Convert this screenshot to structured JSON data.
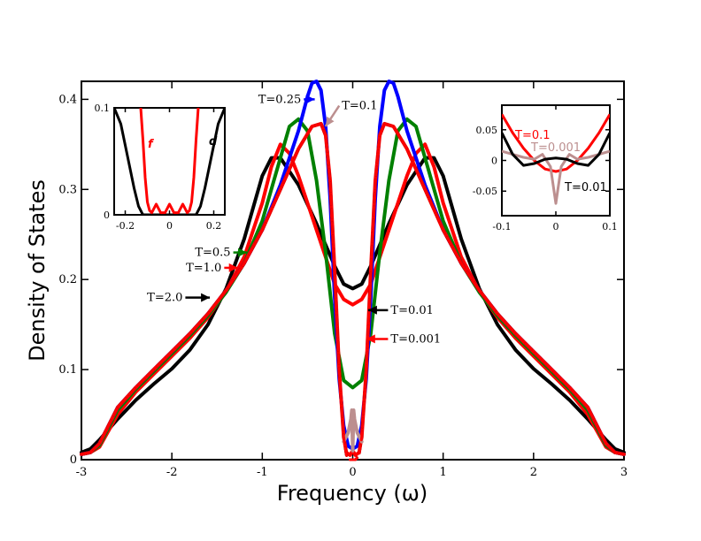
{
  "chart_data": [
    {
      "type": "line",
      "name": "main",
      "xlabel": "Frequency (ω)",
      "ylabel": "Density of States",
      "xlim": [
        -3,
        3
      ],
      "ylim": [
        0,
        0.42
      ],
      "xticks": [
        -3,
        -2,
        -1,
        0,
        1,
        2,
        3
      ],
      "xtick_labels": [
        "-3",
        "-2",
        "-1",
        "0",
        "1",
        "2",
        "3"
      ],
      "yticks": [
        0,
        0.1,
        0.2,
        0.3,
        0.4
      ],
      "ytick_labels": [
        "0",
        "0.1",
        "0.2",
        "0.3",
        "0.4"
      ],
      "series": [
        {
          "name": "T=2.0",
          "color": "#000000",
          "dashed": false,
          "x": [
            -3,
            -2.9,
            -2.8,
            -2.6,
            -2.4,
            -2.2,
            -2.0,
            -1.8,
            -1.6,
            -1.4,
            -1.2,
            -1.0,
            -0.9,
            -0.8,
            -0.6,
            -0.4,
            -0.2,
            -0.1,
            0
          ],
          "y": [
            0.008,
            0.012,
            0.022,
            0.045,
            0.066,
            0.084,
            0.101,
            0.122,
            0.15,
            0.19,
            0.245,
            0.315,
            0.335,
            0.335,
            0.305,
            0.262,
            0.215,
            0.195,
            0.19
          ]
        },
        {
          "name": "T=1.0",
          "color": "#ff0000",
          "dashed": false,
          "x": [
            -3,
            -2.9,
            -2.8,
            -2.6,
            -2.4,
            -2.2,
            -2.0,
            -1.8,
            -1.6,
            -1.4,
            -1.2,
            -1.0,
            -0.9,
            -0.8,
            -0.7,
            -0.6,
            -0.4,
            -0.2,
            -0.1,
            0
          ],
          "y": [
            0.006,
            0.008,
            0.014,
            0.05,
            0.075,
            0.095,
            0.115,
            0.135,
            0.158,
            0.187,
            0.225,
            0.285,
            0.325,
            0.35,
            0.34,
            0.315,
            0.255,
            0.195,
            0.178,
            0.172
          ]
        },
        {
          "name": "T=0.5",
          "color": "#008000",
          "dashed": false,
          "x": [
            -3,
            -2.9,
            -2.8,
            -2.6,
            -2.4,
            -2.2,
            -2.0,
            -1.8,
            -1.6,
            -1.4,
            -1.2,
            -1.0,
            -0.8,
            -0.7,
            -0.6,
            -0.5,
            -0.4,
            -0.3,
            -0.2,
            -0.1,
            0
          ],
          "y": [
            0.006,
            0.008,
            0.016,
            0.055,
            0.078,
            0.098,
            0.118,
            0.138,
            0.16,
            0.186,
            0.218,
            0.265,
            0.335,
            0.37,
            0.378,
            0.365,
            0.31,
            0.23,
            0.14,
            0.088,
            0.08
          ]
        },
        {
          "name": "T=0.25",
          "color": "#0000ff",
          "dashed": false,
          "x": [
            -3,
            -2.9,
            -2.8,
            -2.6,
            -2.4,
            -2.2,
            -2.0,
            -1.8,
            -1.6,
            -1.4,
            -1.2,
            -1.0,
            -0.8,
            -0.6,
            -0.5,
            -0.45,
            -0.4,
            -0.35,
            -0.3,
            -0.25,
            -0.2,
            -0.15,
            -0.1,
            -0.05,
            0
          ],
          "y": [
            0.006,
            0.008,
            0.018,
            0.058,
            0.08,
            0.1,
            0.12,
            0.14,
            0.162,
            0.188,
            0.218,
            0.255,
            0.305,
            0.365,
            0.403,
            0.418,
            0.42,
            0.41,
            0.37,
            0.29,
            0.18,
            0.09,
            0.038,
            0.015,
            0.012
          ]
        },
        {
          "name": "T=0.1",
          "color": "#ff0000",
          "dashed": false,
          "x": [
            -3,
            -2.9,
            -2.8,
            -2.6,
            -2.4,
            -2.2,
            -2.0,
            -1.8,
            -1.6,
            -1.4,
            -1.2,
            -1.0,
            -0.8,
            -0.6,
            -0.45,
            -0.35,
            -0.3,
            -0.25,
            -0.2,
            -0.15,
            -0.1,
            -0.07,
            -0.03,
            0
          ],
          "y": [
            0.006,
            0.008,
            0.018,
            0.058,
            0.08,
            0.1,
            0.12,
            0.14,
            0.162,
            0.188,
            0.218,
            0.255,
            0.3,
            0.345,
            0.37,
            0.373,
            0.36,
            0.31,
            0.21,
            0.1,
            0.025,
            0.008,
            0.005,
            0.01
          ]
        },
        {
          "name": "T=0.01",
          "color": "#000000",
          "dashed": true,
          "x": [
            -3,
            -2.9,
            -2.8,
            -2.6,
            -2.4,
            -2.2,
            -2.0,
            -1.8,
            -1.6,
            -1.4,
            -1.2,
            -1.0,
            -0.8,
            -0.6,
            -0.45,
            -0.35,
            -0.3,
            -0.25,
            -0.2,
            -0.15,
            -0.1,
            -0.07,
            -0.03,
            0
          ],
          "y": [
            0.006,
            0.008,
            0.018,
            0.058,
            0.08,
            0.1,
            0.12,
            0.14,
            0.162,
            0.188,
            0.218,
            0.255,
            0.3,
            0.345,
            0.37,
            0.373,
            0.36,
            0.31,
            0.21,
            0.1,
            0.025,
            0.005,
            0.0,
            0.0
          ]
        },
        {
          "name": "T=0.001",
          "color": "#bc8f8f",
          "dashed": false,
          "x": [
            -0.1,
            -0.05,
            -0.02,
            -0.01,
            0
          ],
          "y": [
            0.02,
            0.03,
            0.045,
            0.055,
            0.01
          ]
        },
        {
          "name": "T=0.001 dashed",
          "color": "#ff0000",
          "dashed": true,
          "x": [
            -3,
            -2.9,
            -2.8,
            -2.6,
            -2.4,
            -2.2,
            -2.0,
            -1.8,
            -1.6,
            -1.4,
            -1.2,
            -1.0,
            -0.8,
            -0.6,
            -0.45,
            -0.35,
            -0.3,
            -0.25,
            -0.2,
            -0.15,
            -0.1,
            -0.07,
            -0.03,
            0
          ],
          "y": [
            0.006,
            0.008,
            0.018,
            0.058,
            0.08,
            0.1,
            0.12,
            0.14,
            0.162,
            0.188,
            0.218,
            0.255,
            0.3,
            0.345,
            0.37,
            0.373,
            0.36,
            0.31,
            0.21,
            0.1,
            0.025,
            0.005,
            0.0,
            0.0
          ]
        }
      ],
      "symmetric": true,
      "annotations": [
        {
          "text": "T=0.25",
          "at": [
            -0.57,
            0.4
          ],
          "arrow_to": [
            -0.42,
            0.4
          ],
          "color": "#0000ff"
        },
        {
          "text": "T=0.1",
          "at": [
            -0.12,
            0.393
          ],
          "arrow_to": [
            -0.3,
            0.37
          ],
          "color": "#bc8f8f"
        },
        {
          "text": "T=0.5",
          "at": [
            -1.35,
            0.23
          ],
          "arrow_to": [
            -1.17,
            0.23
          ],
          "color": "#008000"
        },
        {
          "text": "T=1.0",
          "at": [
            -1.45,
            0.213
          ],
          "arrow_to": [
            -1.27,
            0.213
          ],
          "color": "#ff0000"
        },
        {
          "text": "T=2.0",
          "at": [
            -1.88,
            0.18
          ],
          "arrow_to": [
            -1.58,
            0.18
          ],
          "color": "#000000"
        },
        {
          "text": "T=0.01",
          "at": [
            0.42,
            0.166
          ],
          "arrow_to": [
            0.17,
            0.166
          ],
          "color": "#000000"
        },
        {
          "text": "T=0.001",
          "at": [
            0.42,
            0.134
          ],
          "arrow_to": [
            0.15,
            0.134
          ],
          "color": "#ff0000"
        }
      ]
    },
    {
      "type": "line",
      "name": "inset_left",
      "xlim": [
        -0.25,
        0.25
      ],
      "ylim": [
        0,
        0.1
      ],
      "xticks": [
        -0.2,
        0,
        0.2
      ],
      "xtick_labels": [
        "-0.2",
        "0",
        "0.2"
      ],
      "yticks": [
        0,
        0.1
      ],
      "ytick_labels": [
        "0",
        "0.1"
      ],
      "series": [
        {
          "name": "d",
          "color": "#000000",
          "x": [
            -0.25,
            -0.22,
            -0.19,
            -0.16,
            -0.14,
            -0.12,
            0,
            0.12,
            0.14,
            0.16,
            0.19,
            0.22,
            0.25
          ],
          "y": [
            0.1,
            0.085,
            0.055,
            0.025,
            0.008,
            0.0,
            0.0,
            0.0,
            0.008,
            0.025,
            0.055,
            0.085,
            0.1
          ]
        },
        {
          "name": "f",
          "color": "#ff0000",
          "x": [
            -0.13,
            -0.12,
            -0.11,
            -0.1,
            -0.09,
            -0.08,
            -0.06,
            -0.04,
            -0.02,
            0,
            0.02,
            0.04,
            0.06,
            0.08,
            0.09,
            0.1,
            0.11,
            0.12,
            0.13
          ],
          "y": [
            0.1,
            0.07,
            0.035,
            0.012,
            0.004,
            0.002,
            0.01,
            0.002,
            0.002,
            0.01,
            0.002,
            0.002,
            0.01,
            0.002,
            0.004,
            0.012,
            0.035,
            0.07,
            0.1
          ]
        }
      ],
      "labels": [
        {
          "text": "f",
          "color": "#ff0000"
        },
        {
          "text": "d",
          "color": "#000000"
        }
      ]
    },
    {
      "type": "line",
      "name": "inset_right",
      "xlim": [
        -0.1,
        0.1
      ],
      "ylim": [
        -0.09,
        0.09
      ],
      "xticks": [
        -0.1,
        0,
        0.1
      ],
      "xtick_labels": [
        "-0.1",
        "0",
        "0.1"
      ],
      "yticks": [
        -0.05,
        0,
        0.05
      ],
      "ytick_labels": [
        "-0.05",
        "0",
        "0.05"
      ],
      "series": [
        {
          "name": "T=0.1",
          "color": "#ff0000",
          "x": [
            -0.1,
            -0.08,
            -0.06,
            -0.04,
            -0.02,
            0,
            0.02,
            0.04,
            0.06,
            0.08,
            0.1
          ],
          "y": [
            0.075,
            0.045,
            0.02,
            0.0,
            -0.014,
            -0.018,
            -0.014,
            0.0,
            0.02,
            0.045,
            0.075
          ]
        },
        {
          "name": "T=0.001",
          "color": "#bc8f8f",
          "x": [
            -0.1,
            -0.08,
            -0.06,
            -0.04,
            -0.025,
            -0.01,
            0,
            0.01,
            0.025,
            0.04,
            0.06,
            0.08,
            0.1
          ],
          "y": [
            0.015,
            0.01,
            0.005,
            0.002,
            0.01,
            -0.01,
            -0.07,
            -0.01,
            0.01,
            0.002,
            0.005,
            0.01,
            0.015
          ]
        },
        {
          "name": "T=0.01",
          "color": "#000000",
          "x": [
            -0.1,
            -0.08,
            -0.06,
            -0.04,
            -0.02,
            0,
            0.02,
            0.04,
            0.06,
            0.08,
            0.1
          ],
          "y": [
            0.045,
            0.01,
            -0.008,
            -0.005,
            0.002,
            0.004,
            0.002,
            -0.005,
            -0.008,
            0.01,
            0.045
          ]
        }
      ],
      "labels": [
        {
          "text": "T=0.1",
          "color": "#ff0000"
        },
        {
          "text": "T=0.001",
          "color": "#bc8f8f"
        },
        {
          "text": "T=0.01",
          "color": "#000000"
        }
      ]
    }
  ]
}
